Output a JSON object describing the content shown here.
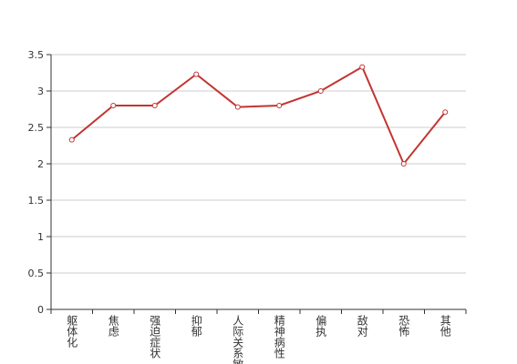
{
  "chart_data": {
    "type": "line",
    "categories": [
      "躯体化",
      "焦虑",
      "强迫症状",
      "抑郁",
      "人际关系敏感",
      "精神病性",
      "偏执",
      "敌对",
      "恐怖",
      "其他"
    ],
    "series": [
      {
        "color": "#c23531",
        "values": [
          2.33,
          2.8,
          2.8,
          3.23,
          2.78,
          2.8,
          3.0,
          3.33,
          2.0,
          2.71
        ]
      }
    ],
    "ylim": [
      0,
      3.5
    ],
    "yticks": [
      0,
      0.5,
      1,
      1.5,
      2,
      2.5,
      3,
      3.5
    ],
    "grid": true
  }
}
